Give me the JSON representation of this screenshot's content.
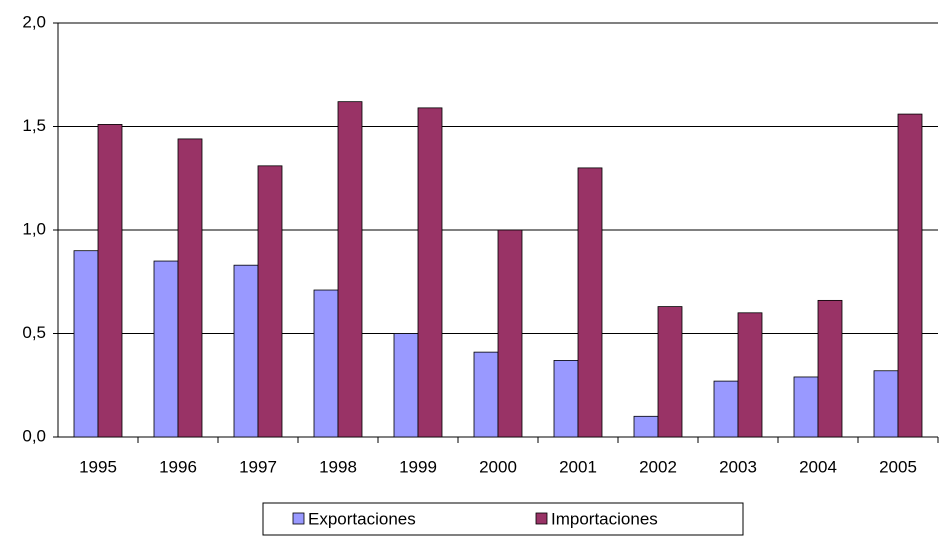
{
  "chart_data": {
    "type": "bar",
    "categories": [
      "1995",
      "1996",
      "1997",
      "1998",
      "1999",
      "2000",
      "2001",
      "2002",
      "2003",
      "2004",
      "2005"
    ],
    "series": [
      {
        "name": "Exportaciones",
        "color": "#9999ff",
        "values": [
          0.9,
          0.85,
          0.83,
          0.71,
          0.5,
          0.41,
          0.37,
          0.1,
          0.27,
          0.29,
          0.32
        ]
      },
      {
        "name": "Importaciones",
        "color": "#993366",
        "values": [
          1.51,
          1.44,
          1.31,
          1.62,
          1.59,
          1.0,
          1.3,
          0.63,
          0.6,
          0.66,
          1.56
        ]
      }
    ],
    "ylim": [
      0,
      2
    ],
    "yticks": [
      {
        "value": 0,
        "label": "0,0"
      },
      {
        "value": 0.5,
        "label": "0,5"
      },
      {
        "value": 1,
        "label": "1,0"
      },
      {
        "value": 1.5,
        "label": "1,5"
      },
      {
        "value": 2,
        "label": "2,0"
      }
    ],
    "grid": true,
    "legend": "bottom"
  }
}
